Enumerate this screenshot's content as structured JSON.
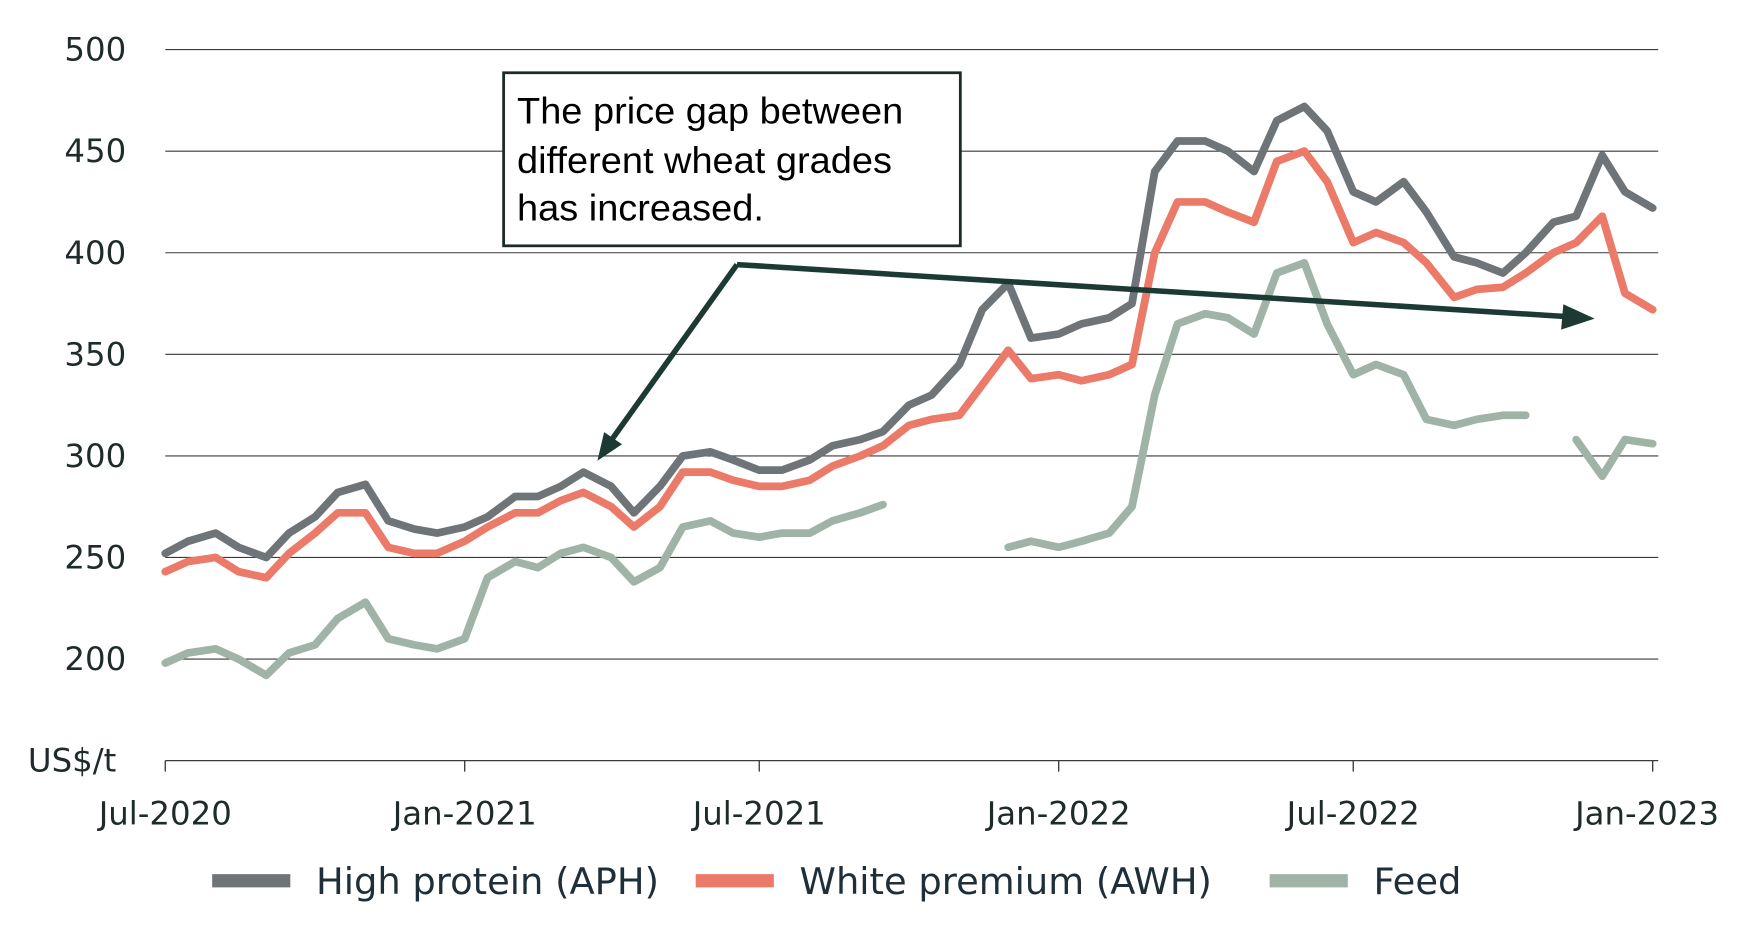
{
  "chart_data": {
    "type": "line",
    "title": "",
    "ylabel": "US$/t",
    "xlabel": "",
    "ylim": [
      150,
      500
    ],
    "yticks": [
      200,
      250,
      300,
      350,
      400,
      450,
      500
    ],
    "xticks": [
      {
        "label": "Jul-2020",
        "date": "2020-07-01"
      },
      {
        "label": "Jan-2021",
        "date": "2021-01-01"
      },
      {
        "label": "Jul-2021",
        "date": "2021-07-01"
      },
      {
        "label": "Jan-2022",
        "date": "2022-01-01"
      },
      {
        "label": "Jul-2022",
        "date": "2022-07-01"
      },
      {
        "label": "Jan-2023",
        "date": "2023-01-01"
      }
    ],
    "xlim": [
      "2020-07-01",
      "2023-01-01"
    ],
    "grid": "horizontal",
    "legend_position": "bottom",
    "x": [
      "2020-07-01",
      "2020-07-15",
      "2020-08-01",
      "2020-08-15",
      "2020-09-01",
      "2020-09-15",
      "2020-10-01",
      "2020-10-15",
      "2020-11-01",
      "2020-11-15",
      "2020-12-01",
      "2020-12-15",
      "2021-01-01",
      "2021-01-15",
      "2021-02-01",
      "2021-02-15",
      "2021-03-01",
      "2021-03-15",
      "2021-04-01",
      "2021-04-15",
      "2021-05-01",
      "2021-05-15",
      "2021-06-01",
      "2021-06-15",
      "2021-07-01",
      "2021-07-15",
      "2021-08-01",
      "2021-08-15",
      "2021-09-01",
      "2021-09-15",
      "2021-10-01",
      "2021-10-15",
      "2021-11-01",
      "2021-11-15",
      "2021-12-01",
      "2021-12-15",
      "2022-01-01",
      "2022-01-15",
      "2022-02-01",
      "2022-02-15",
      "2022-03-01",
      "2022-03-15",
      "2022-04-01",
      "2022-04-15",
      "2022-05-01",
      "2022-05-15",
      "2022-06-01",
      "2022-06-15",
      "2022-07-01",
      "2022-07-15",
      "2022-08-01",
      "2022-08-15",
      "2022-09-01",
      "2022-09-15",
      "2022-10-01",
      "2022-10-15",
      "2022-11-01",
      "2022-11-15",
      "2022-12-01",
      "2022-12-15",
      "2023-01-01"
    ],
    "series": [
      {
        "name": "High protein (APH)",
        "color": "#6f7479",
        "values": [
          252,
          258,
          262,
          255,
          250,
          262,
          270,
          282,
          286,
          268,
          264,
          262,
          265,
          270,
          280,
          280,
          285,
          292,
          285,
          272,
          285,
          300,
          302,
          298,
          293,
          293,
          298,
          305,
          308,
          312,
          325,
          330,
          345,
          372,
          385,
          358,
          360,
          365,
          368,
          375,
          440,
          455,
          455,
          450,
          440,
          465,
          472,
          460,
          430,
          425,
          435,
          420,
          398,
          395,
          390,
          400,
          415,
          418,
          448,
          430,
          422
        ]
      },
      {
        "name": "White premium (AWH)",
        "color": "#ec7a68",
        "values": [
          243,
          248,
          250,
          243,
          240,
          252,
          262,
          272,
          272,
          255,
          252,
          252,
          258,
          265,
          272,
          272,
          278,
          282,
          275,
          265,
          275,
          292,
          292,
          288,
          285,
          285,
          288,
          295,
          300,
          305,
          315,
          318,
          320,
          335,
          352,
          338,
          340,
          337,
          340,
          345,
          400,
          425,
          425,
          420,
          415,
          445,
          450,
          435,
          405,
          410,
          405,
          395,
          378,
          382,
          383,
          390,
          400,
          405,
          418,
          380,
          372
        ]
      },
      {
        "name": "Feed",
        "color": "#9fb3a6",
        "values": [
          198,
          203,
          205,
          200,
          192,
          203,
          207,
          220,
          228,
          210,
          207,
          205,
          210,
          240,
          248,
          245,
          252,
          255,
          250,
          238,
          245,
          265,
          268,
          262,
          260,
          262,
          262,
          268,
          272,
          276,
          null,
          null,
          null,
          null,
          255,
          258,
          255,
          258,
          262,
          275,
          330,
          365,
          370,
          368,
          360,
          390,
          395,
          365,
          340,
          345,
          340,
          318,
          315,
          318,
          320,
          320,
          null,
          308,
          290,
          308,
          306
        ]
      }
    ],
    "annotation": {
      "text_lines": [
        "The price gap between",
        "different wheat grades",
        "has increased."
      ]
    },
    "arrow_color": "#1c3a33"
  }
}
